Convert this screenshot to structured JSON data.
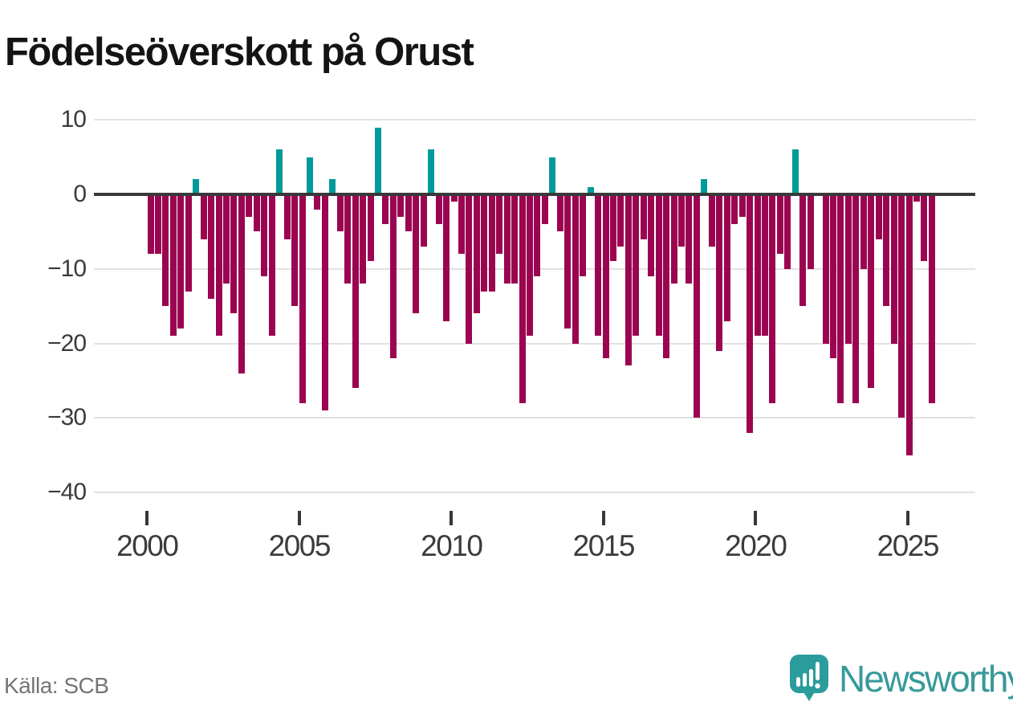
{
  "chart": {
    "title": "Födelseöverskott på Orust"
  },
  "footer": {
    "source": "Källa: SCB",
    "brand": "Newsworthy"
  },
  "chart_data": {
    "type": "bar",
    "title": "Födelseöverskott på Orust",
    "xlabel": "",
    "ylabel": "",
    "start_year": 2000,
    "frequency": "quarterly",
    "values": [
      -8,
      -8,
      -15,
      -19,
      -18,
      -13,
      2,
      -6,
      -14,
      -19,
      -12,
      -16,
      -24,
      -3,
      -5,
      -11,
      -19,
      6,
      -6,
      -15,
      -28,
      5,
      -2,
      -29,
      2,
      -5,
      -12,
      -26,
      -12,
      -9,
      9,
      -4,
      -22,
      -3,
      -5,
      -16,
      -7,
      6,
      -4,
      -17,
      -1,
      -8,
      -20,
      -16,
      -13,
      -13,
      -8,
      -12,
      -12,
      -28,
      -19,
      -11,
      -4,
      5,
      -5,
      -18,
      -20,
      -11,
      1,
      -19,
      -22,
      -9,
      -7,
      -23,
      -19,
      -6,
      -11,
      -19,
      -22,
      -12,
      -7,
      -12,
      -30,
      2,
      -7,
      -21,
      -17,
      -4,
      -3,
      -32,
      -19,
      -19,
      -28,
      -8,
      -10,
      6,
      -15,
      -10,
      0,
      -20,
      -22,
      -28,
      -20,
      -28,
      -10,
      -26,
      -6,
      -15,
      -20,
      -30,
      -35,
      -1,
      -9,
      -28
    ],
    "ylim": [
      -40,
      10
    ],
    "grid": true,
    "legend_position": "none",
    "ytick_values": [
      10,
      0,
      -10,
      -20,
      -30,
      -40
    ],
    "ytick_labels": [
      "10",
      "0",
      "−10",
      "−20",
      "−30",
      "−40"
    ],
    "xtick_years": [
      2000,
      2005,
      2010,
      2015,
      2020,
      2025
    ],
    "xtick_labels": [
      "2000",
      "2005",
      "2010",
      "2015",
      "2020",
      "2025"
    ],
    "colors": {
      "positive": "#009a9a",
      "negative": "#9b0450",
      "zero_line": "#383838",
      "gridline": "#e1e1e1",
      "axis_text": "#3b3b3b",
      "brand_teal": "#2b9c9c"
    }
  }
}
